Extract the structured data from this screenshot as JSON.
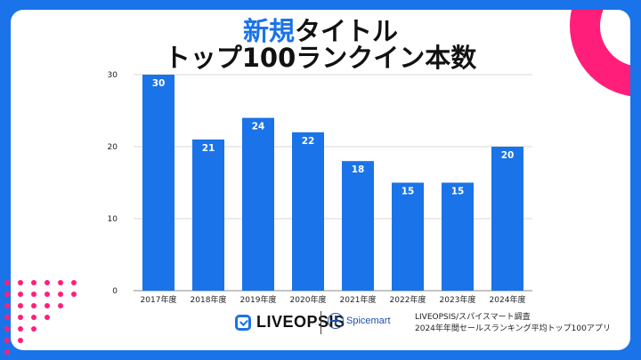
{
  "title": {
    "highlight": "新規",
    "line1_rest": "タイトル",
    "line2": "トップ100ランクイン本数"
  },
  "chart_data": {
    "type": "bar",
    "categories": [
      "2017年度",
      "2018年度",
      "2019年度",
      "2020年度",
      "2021年度",
      "2022年度",
      "2023年度",
      "2024年度"
    ],
    "values": [
      30,
      21,
      24,
      22,
      18,
      15,
      15,
      20
    ],
    "yticks": [
      0,
      10,
      20,
      30
    ],
    "ylim": [
      0,
      30
    ],
    "grid": true,
    "bar_color": "#1a73e8",
    "label_color": "#ffffff"
  },
  "footer": {
    "logo_liveopsis": "LIVEOPSIS",
    "logo_spicemart": "Spicemart",
    "source_line1": "LIVEOPSIS/スパイスマート調査",
    "source_line2": "2024年年間セールスランキング平均トップ100アプリ"
  },
  "colors": {
    "background": "#1a73e8",
    "accent_pink": "#ff1f7a"
  }
}
